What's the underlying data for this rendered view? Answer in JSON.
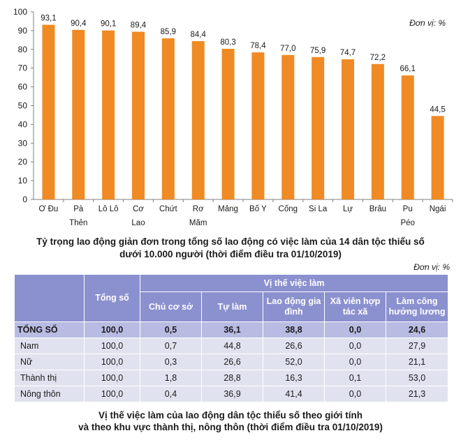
{
  "chart_data": {
    "type": "bar",
    "categories": [
      "Ơ Đu",
      "Pà Thẻn",
      "Lô Lô",
      "Cơ Lao",
      "Chứt",
      "Rơ Măm",
      "Mảng",
      "Bố Y",
      "Cống",
      "Si La",
      "Lự",
      "Brâu",
      "Pu Péo",
      "Ngái"
    ],
    "category_lines": [
      [
        "Ơ Đu"
      ],
      [
        "Pà",
        "Thẻn"
      ],
      [
        "Lô Lô"
      ],
      [
        "Cơ",
        "Lao"
      ],
      [
        "Chứt"
      ],
      [
        "Rơ",
        "Măm"
      ],
      [
        "Mảng"
      ],
      [
        "Bố Y"
      ],
      [
        "Cống"
      ],
      [
        "Si La"
      ],
      [
        "Lự"
      ],
      [
        "Brâu"
      ],
      [
        "Pu",
        "Péo"
      ],
      [
        "Ngái"
      ]
    ],
    "values": [
      93.1,
      90.4,
      90.1,
      89.4,
      85.9,
      84.4,
      80.3,
      78.4,
      77.0,
      75.9,
      74.7,
      72.2,
      66.1,
      44.5
    ],
    "value_labels": [
      "93,1",
      "90,4",
      "90,1",
      "89,4",
      "85,9",
      "84,4",
      "80,3",
      "78,4",
      "77,0",
      "75,9",
      "74,7",
      "72,2",
      "66,1",
      "44,5"
    ],
    "yticks": [
      "0",
      "10",
      "20",
      "30",
      "40",
      "50",
      "60",
      "70",
      "80",
      "90",
      "100"
    ],
    "ylim": [
      0,
      100
    ],
    "unit": "Đơn vị: %",
    "bar_color": "#f08a24",
    "title_lines": [
      "Tỷ trọng lao động giản đơn trong tổng số lao động có việc làm của 14 dân tộc thiểu số",
      "dưới 10.000 người (thời điểm điều tra 01/10/2019)"
    ]
  },
  "table": {
    "unit": "Đơn vị: %",
    "header_total": "Tổng số",
    "header_group": "Vị thế việc làm",
    "subheaders": [
      "Chủ cơ sở",
      "Tự làm",
      "Lao động gia đình",
      "Xã viên hợp tác xã",
      "Làm công hưởng lương"
    ],
    "rows": [
      {
        "label": "TỔNG SỐ",
        "values": [
          "100,0",
          "0,5",
          "36,1",
          "38,8",
          "0,0",
          "24,6"
        ]
      },
      {
        "label": "Nam",
        "values": [
          "100,0",
          "0,7",
          "44,8",
          "26,6",
          "0,0",
          "27,9"
        ]
      },
      {
        "label": "Nữ",
        "values": [
          "100,0",
          "0,3",
          "26,6",
          "52,0",
          "0,0",
          "21,1"
        ]
      },
      {
        "label": "Thành thị",
        "values": [
          "100,0",
          "1,8",
          "28,8",
          "16,3",
          "0,1",
          "53,0"
        ]
      },
      {
        "label": "Nông thôn",
        "values": [
          "100,0",
          "0,4",
          "36,9",
          "41,4",
          "0,0",
          "21,3"
        ]
      }
    ],
    "caption_lines": [
      "Vị thế việc làm của lao động dân tộc thiểu số theo giới tính",
      "và theo khu vực thành thị, nông thôn (thời điểm điều tra 01/10/2019)"
    ]
  }
}
